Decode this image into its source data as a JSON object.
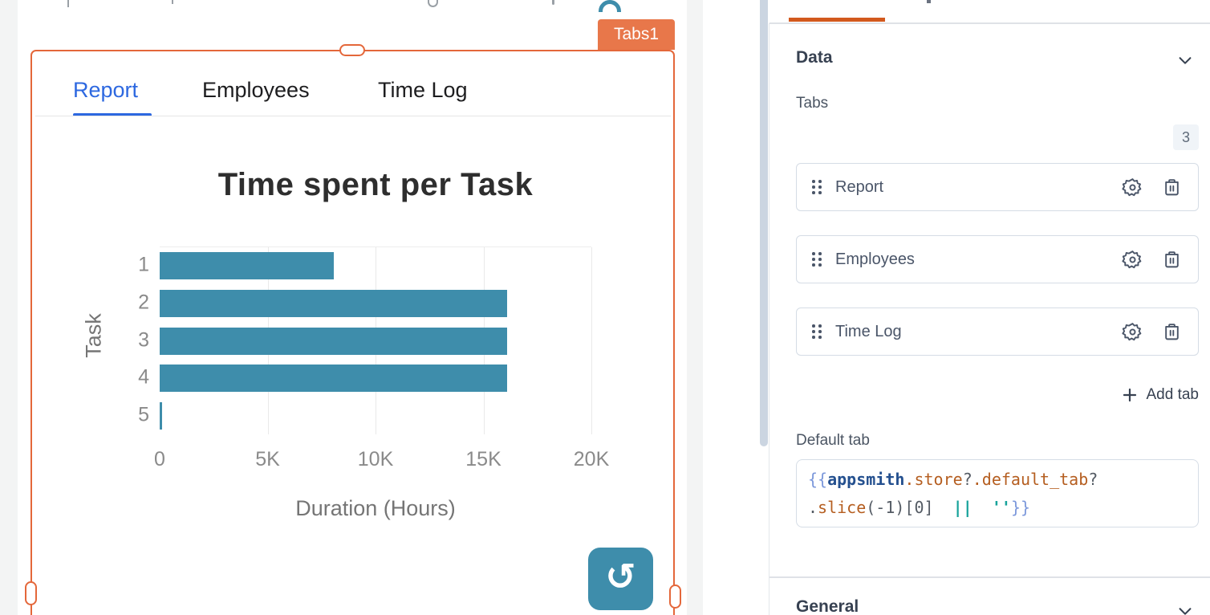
{
  "colors": {
    "selection_orange": "#E4673A",
    "badge_orange": "#E8774A",
    "pane_tab_orange": "#D2591D",
    "bar_teal": "#3E8DAB",
    "active_tab_blue": "#2D68E0"
  },
  "icons": {
    "refresh": "↺",
    "settings": "gear-icon",
    "delete": "trash-icon",
    "drag_handle": "six-dot-grip",
    "add": "plus-icon",
    "collapse": "chevron-down-icon"
  },
  "canvas": {
    "widget_badge": "Tabs1",
    "tabs": [
      {
        "label": "Report",
        "active": true
      },
      {
        "label": "Employees",
        "active": false
      },
      {
        "label": "Time Log",
        "active": false
      }
    ]
  },
  "chart_data": {
    "type": "bar",
    "orientation": "horizontal",
    "title": "Time spent per Task",
    "categories": [
      "1",
      "2",
      "3",
      "4",
      "5"
    ],
    "values": [
      8050,
      16100,
      16100,
      16100,
      100
    ],
    "xlabel": "Duration (Hours)",
    "ylabel": "Task",
    "xticks": [
      "0",
      "5K",
      "10K",
      "15K",
      "20K"
    ],
    "xtick_values": [
      0,
      5000,
      10000,
      15000,
      20000
    ],
    "xlim": [
      0,
      20000
    ],
    "grid": true,
    "legend": false,
    "bar_color": "#3E8DAB"
  },
  "panel": {
    "data_section_title": "Data",
    "general_section_title": "General",
    "tabs_label": "Tabs",
    "tabs_count": "3",
    "tab_items": [
      {
        "label": "Report"
      },
      {
        "label": "Employees"
      },
      {
        "label": "Time Log"
      }
    ],
    "add_tab_label": "Add tab",
    "default_tab_label": "Default tab",
    "code": {
      "value": "{{appsmith.store?.default_tab?.slice(-1)[0]  ||  ''}}",
      "lines": [
        [
          {
            "t": "{{",
            "c": "brace"
          },
          {
            "t": "appsmith",
            "c": "obj"
          },
          {
            "t": ".",
            "c": "prop"
          },
          {
            "t": "store",
            "c": "prop"
          },
          {
            "t": "?",
            "c": "punc"
          },
          {
            "t": ".",
            "c": "prop"
          },
          {
            "t": "default_tab",
            "c": "prop"
          },
          {
            "t": "?",
            "c": "punc"
          }
        ],
        [
          {
            "t": ".",
            "c": "punc"
          },
          {
            "t": "slice",
            "c": "prop"
          },
          {
            "t": "(-1)[0]",
            "c": "punc"
          },
          {
            "t": "  ",
            "c": "punc"
          },
          {
            "t": "||",
            "c": "op"
          },
          {
            "t": "  ",
            "c": "punc"
          },
          {
            "t": "''",
            "c": "str"
          },
          {
            "t": "}}",
            "c": "brace"
          }
        ]
      ]
    }
  }
}
